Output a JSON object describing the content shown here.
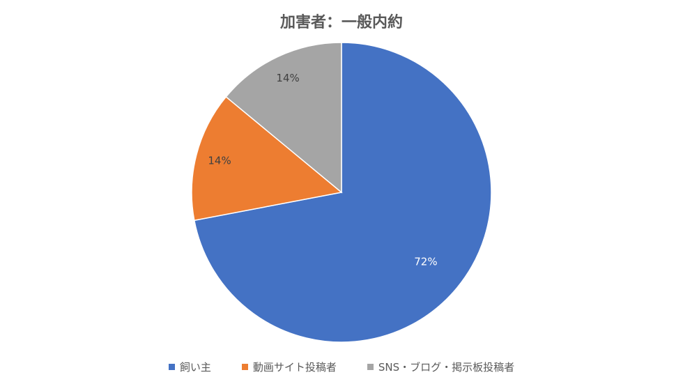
{
  "chart_data": {
    "type": "pie",
    "title": "加害者：一般内約",
    "categories": [
      "飼い主",
      "動画サイト投稿者",
      "SNS・ブログ・掲示板投稿者"
    ],
    "values": [
      72,
      14,
      14
    ],
    "data_labels": [
      "72%",
      "14%",
      "14%"
    ],
    "colors": [
      "#4472c4",
      "#ed7d31",
      "#a5a5a5"
    ],
    "label_colors": [
      "#ffffff",
      "#404040",
      "#404040"
    ],
    "legend_position": "bottom",
    "start": "top",
    "direction": "clockwise"
  }
}
